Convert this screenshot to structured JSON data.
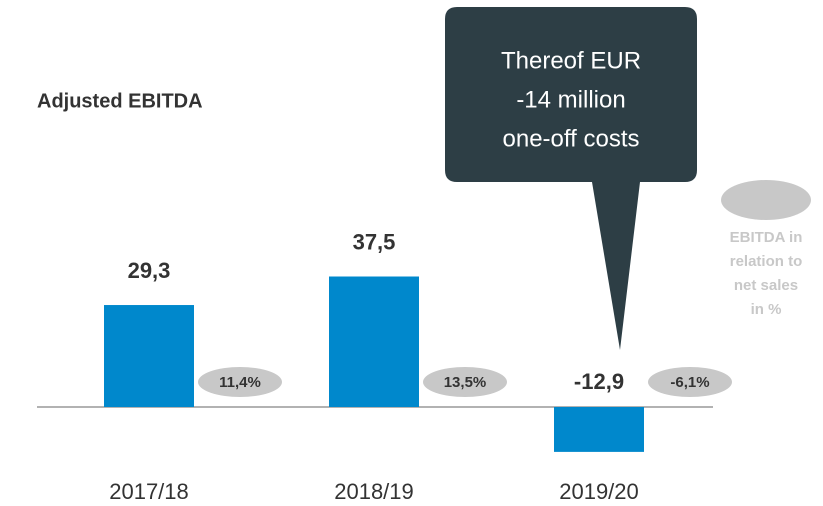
{
  "chart_data": {
    "type": "bar",
    "subtitle": "Adjusted EBITDA",
    "categories": [
      "2017/18",
      "2018/19",
      "2019/20"
    ],
    "values": [
      29.3,
      37.5,
      -12.9
    ],
    "value_labels": [
      "29,3",
      "37,5",
      "-12,9"
    ],
    "color": "#0088cc",
    "ratio": {
      "name": [
        "EBITDA in",
        "relation to",
        "net sales",
        "in %"
      ],
      "color": "#c8c8c8",
      "values": [
        11.4,
        13.5,
        -6.1
      ],
      "value_labels": [
        "11,4%",
        "13,5%",
        "-6,1%"
      ]
    },
    "annotation": [
      "Thereof EUR",
      "-14 million",
      "one-off costs"
    ]
  }
}
